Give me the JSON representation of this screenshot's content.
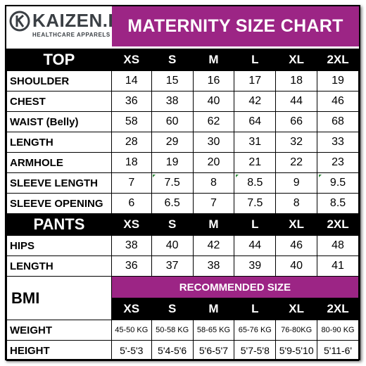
{
  "brand": {
    "name": "KAIZEN.PH",
    "tagline": "HEALTHCARE APPARELS"
  },
  "title": "MATERNITY SIZE CHART",
  "sizes": [
    "XS",
    "S",
    "M",
    "L",
    "XL",
    "2XL"
  ],
  "top": {
    "heading": "TOP",
    "rows": [
      {
        "label": "SHOULDER",
        "values": [
          "14",
          "15",
          "16",
          "17",
          "18",
          "19"
        ]
      },
      {
        "label": "CHEST",
        "values": [
          "36",
          "38",
          "40",
          "42",
          "44",
          "46"
        ]
      },
      {
        "label": "WAIST (Belly)",
        "values": [
          "58",
          "60",
          "62",
          "64",
          "66",
          "68"
        ]
      },
      {
        "label": "LENGTH",
        "values": [
          "28",
          "29",
          "30",
          "31",
          "32",
          "33"
        ]
      },
      {
        "label": "ARMHOLE",
        "values": [
          "18",
          "19",
          "20",
          "21",
          "22",
          "23"
        ]
      },
      {
        "label": "SLEEVE LENGTH",
        "values": [
          "7",
          "7.5",
          "8",
          "8.5",
          "9",
          "9.5"
        ]
      },
      {
        "label": "SLEEVE OPENING",
        "values": [
          "6",
          "6.5",
          "7",
          "7.5",
          "8",
          "8.5"
        ]
      }
    ]
  },
  "pants": {
    "heading": "PANTS",
    "rows": [
      {
        "label": "HIPS",
        "values": [
          "38",
          "40",
          "42",
          "44",
          "46",
          "48"
        ]
      },
      {
        "label": "LENGTH",
        "values": [
          "36",
          "37",
          "38",
          "39",
          "40",
          "41"
        ]
      }
    ]
  },
  "bmi": {
    "heading": "BMI",
    "recommended_label": "RECOMMENDED SIZE",
    "rows": [
      {
        "label": "WEIGHT",
        "values": [
          "45-50 KG",
          "50-58 KG",
          "58-65 KG",
          "65-76 KG",
          "76-80KG",
          "80-90 KG"
        ]
      },
      {
        "label": "HEIGHT",
        "values": [
          "5'-5'3",
          "5'4-5'6",
          "5'6-5'7",
          "5'7-5'8",
          "5'9-5'10",
          "5'11-6'"
        ]
      }
    ]
  },
  "colors": {
    "accent": "#9c2585",
    "header_bg": "#000000",
    "text": "#000000"
  }
}
